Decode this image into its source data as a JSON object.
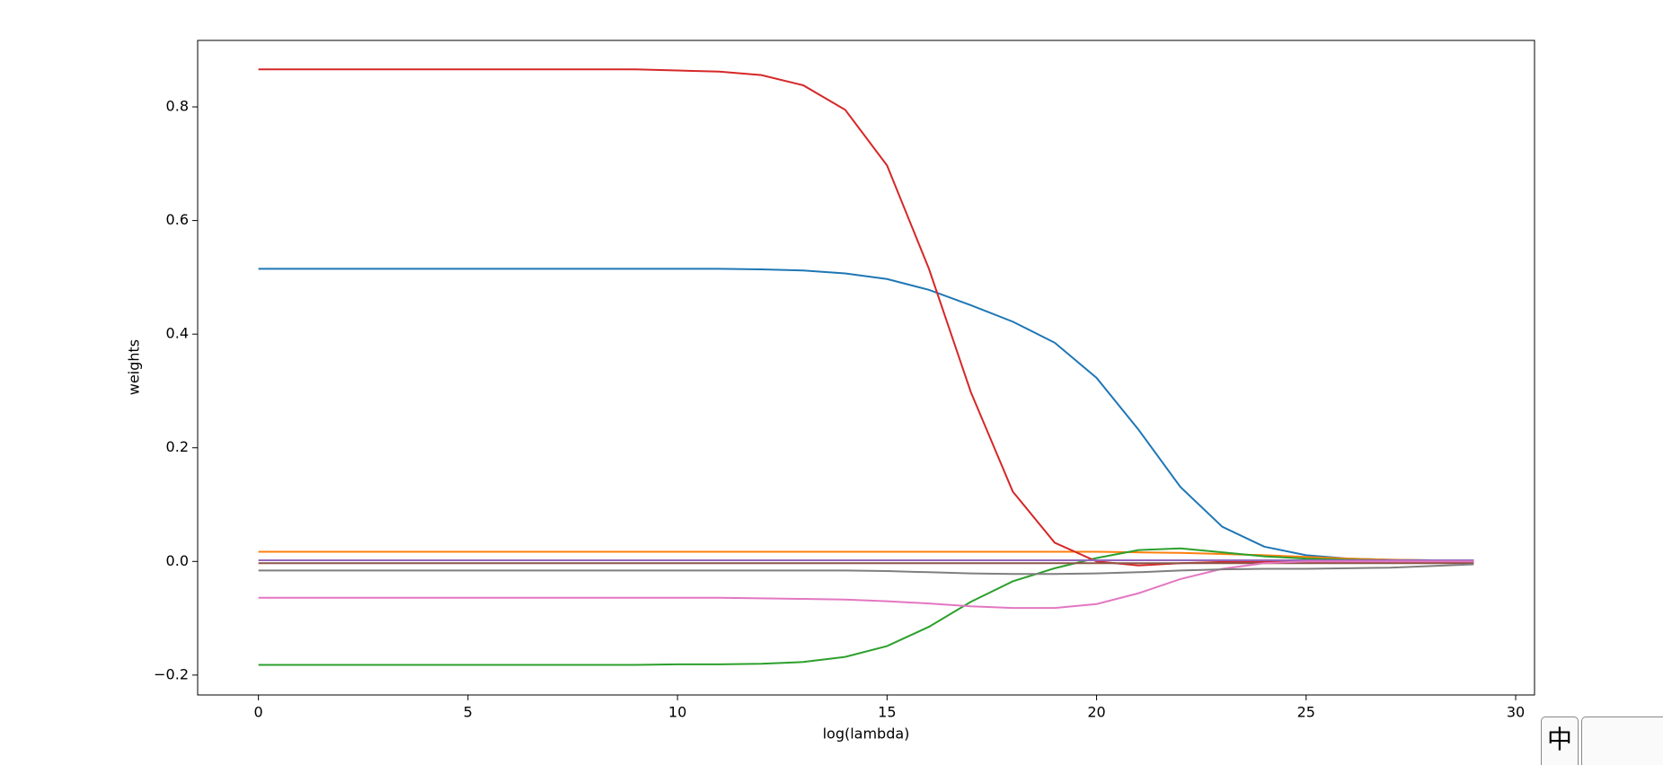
{
  "chart_data": {
    "type": "line",
    "x_label": "log(lambda)",
    "y_label": "weights",
    "x": [
      0,
      1,
      2,
      3,
      4,
      5,
      6,
      7,
      8,
      9,
      10,
      11,
      12,
      13,
      14,
      15,
      16,
      17,
      18,
      19,
      20,
      21,
      22,
      23,
      24,
      25,
      26,
      27,
      28,
      29
    ],
    "series": [
      {
        "color": "#1f77b4",
        "values": [
          0.515,
          0.515,
          0.515,
          0.515,
          0.515,
          0.515,
          0.515,
          0.515,
          0.515,
          0.515,
          0.515,
          0.515,
          0.514,
          0.512,
          0.507,
          0.497,
          0.478,
          0.451,
          0.422,
          0.385,
          0.323,
          0.232,
          0.131,
          0.061,
          0.026,
          0.011,
          0.005,
          0.003,
          0.002,
          0.001
        ]
      },
      {
        "color": "#ff7f0e",
        "values": [
          0.017,
          0.017,
          0.017,
          0.017,
          0.017,
          0.017,
          0.017,
          0.017,
          0.017,
          0.017,
          0.017,
          0.017,
          0.017,
          0.017,
          0.017,
          0.017,
          0.017,
          0.017,
          0.017,
          0.017,
          0.017,
          0.016,
          0.015,
          0.013,
          0.011,
          0.008,
          0.005,
          0.003,
          0.002,
          0.001
        ]
      },
      {
        "color": "#2ca02c",
        "values": [
          -0.182,
          -0.182,
          -0.182,
          -0.182,
          -0.182,
          -0.182,
          -0.182,
          -0.182,
          -0.182,
          -0.182,
          -0.181,
          -0.181,
          -0.18,
          -0.177,
          -0.168,
          -0.149,
          -0.115,
          -0.071,
          -0.035,
          -0.012,
          0.006,
          0.02,
          0.023,
          0.016,
          0.009,
          0.005,
          0.003,
          0.002,
          0.001,
          0.001
        ]
      },
      {
        "color": "#d62728",
        "values": [
          0.866,
          0.866,
          0.866,
          0.866,
          0.866,
          0.866,
          0.866,
          0.866,
          0.866,
          0.866,
          0.864,
          0.862,
          0.856,
          0.838,
          0.795,
          0.697,
          0.515,
          0.298,
          0.123,
          0.033,
          0.0,
          -0.007,
          -0.003,
          -0.001,
          -0.001,
          -0.001,
          -0.001,
          -0.001,
          -0.001,
          -0.001
        ]
      },
      {
        "color": "#9467bd",
        "values": [
          0.002,
          0.002,
          0.002,
          0.002,
          0.002,
          0.002,
          0.002,
          0.002,
          0.002,
          0.002,
          0.002,
          0.002,
          0.002,
          0.002,
          0.002,
          0.002,
          0.002,
          0.002,
          0.002,
          0.002,
          0.002,
          0.002,
          0.002,
          0.002,
          0.002,
          0.002,
          0.002,
          0.002,
          0.002,
          0.002
        ]
      },
      {
        "color": "#8c564b",
        "values": [
          -0.003,
          -0.003,
          -0.003,
          -0.003,
          -0.003,
          -0.003,
          -0.003,
          -0.003,
          -0.003,
          -0.003,
          -0.003,
          -0.003,
          -0.003,
          -0.003,
          -0.003,
          -0.003,
          -0.003,
          -0.003,
          -0.003,
          -0.003,
          -0.003,
          -0.003,
          -0.003,
          -0.003,
          -0.003,
          -0.003,
          -0.003,
          -0.003,
          -0.003,
          -0.003
        ]
      },
      {
        "color": "#e377c2",
        "values": [
          -0.064,
          -0.064,
          -0.064,
          -0.064,
          -0.064,
          -0.064,
          -0.064,
          -0.064,
          -0.064,
          -0.064,
          -0.064,
          -0.064,
          -0.065,
          -0.066,
          -0.067,
          -0.07,
          -0.074,
          -0.079,
          -0.082,
          -0.082,
          -0.075,
          -0.056,
          -0.031,
          -0.013,
          -0.003,
          0,
          0,
          0,
          0,
          0
        ]
      },
      {
        "color": "#7f7f7f",
        "values": [
          -0.016,
          -0.016,
          -0.016,
          -0.016,
          -0.016,
          -0.016,
          -0.016,
          -0.016,
          -0.016,
          -0.016,
          -0.016,
          -0.016,
          -0.016,
          -0.016,
          -0.016,
          -0.017,
          -0.019,
          -0.021,
          -0.022,
          -0.022,
          -0.021,
          -0.019,
          -0.016,
          -0.014,
          -0.013,
          -0.013,
          -0.012,
          -0.011,
          -0.008,
          -0.005
        ]
      }
    ],
    "xlim": [
      -1.45,
      30.45
    ],
    "xticks": [
      0,
      5,
      10,
      15,
      20,
      25,
      30
    ],
    "ylim": [
      -0.235,
      0.917
    ],
    "yticks": [
      {
        "value": -0.2,
        "label": "−0.2"
      },
      {
        "value": 0,
        "label": "0.0"
      },
      {
        "value": 0.2,
        "label": "0.2"
      },
      {
        "value": 0.4,
        "label": "0.4"
      },
      {
        "value": 0.6,
        "label": "0.6"
      },
      {
        "value": 0.8,
        "label": "0.8"
      }
    ],
    "grid": false
  },
  "overlay": {
    "ime_label": "中"
  }
}
